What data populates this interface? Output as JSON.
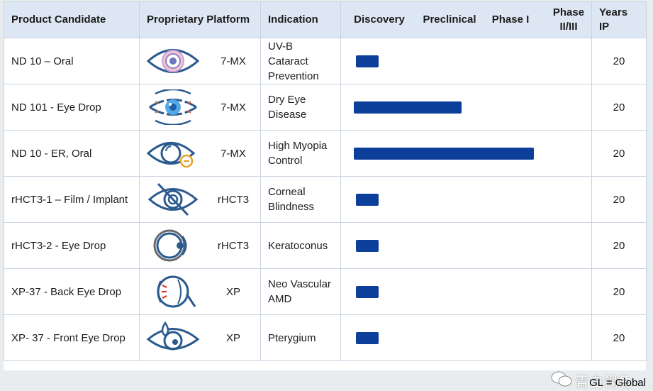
{
  "table": {
    "headers": {
      "candidate": "Product Candidate",
      "platform": "Proprietary Platform",
      "indication": "Indication",
      "discovery": "Discovery",
      "preclinical": "Preclinical",
      "phase1": "Phase I",
      "phase23": "Phase II/III",
      "years": "Years IP"
    },
    "rows": [
      {
        "candidate": "ND 10 – Oral",
        "platform": "7-MX",
        "icon": "eye-target-icon",
        "indication": "UV-B Cataract Prevention",
        "progress": 0.09,
        "years": "20"
      },
      {
        "candidate": "ND 101 - Eye Drop",
        "platform": "7-MX",
        "icon": "eye-drop-icon",
        "indication": "Dry Eye Disease",
        "progress": 0.43,
        "years": "20"
      },
      {
        "candidate": "ND 10 - ER, Oral",
        "platform": "7-MX",
        "icon": "eye-minus-icon",
        "indication": "High Myopia Control",
        "progress": 0.72,
        "years": "20"
      },
      {
        "candidate": "rHCT3-1 – Film / Implant",
        "platform": "rHCT3",
        "icon": "eye-crossed-icon",
        "indication": "Corneal Blindness",
        "progress": 0.09,
        "years": "20"
      },
      {
        "candidate": "rHCT3-2 - Eye Drop",
        "platform": "rHCT3",
        "icon": "eyeball-side-icon",
        "indication": "Keratoconus",
        "progress": 0.09,
        "years": "20"
      },
      {
        "candidate": "XP-37 - Back Eye Drop",
        "platform": "XP",
        "icon": "eye-retina-icon",
        "indication": "Neo Vascular AMD",
        "progress": 0.09,
        "years": "20"
      },
      {
        "candidate": "XP- 37 - Front Eye Drop",
        "platform": "XP",
        "icon": "eye-droplet-icon",
        "indication": "Pterygium",
        "progress": 0.09,
        "years": "20"
      }
    ]
  },
  "footer": {
    "watermark": "青白视角",
    "legend": "GL = Global"
  },
  "colors": {
    "bar": "#0b3f9a",
    "header_bg": "#dde7f3",
    "icon_stroke": "#2a5a8e"
  }
}
